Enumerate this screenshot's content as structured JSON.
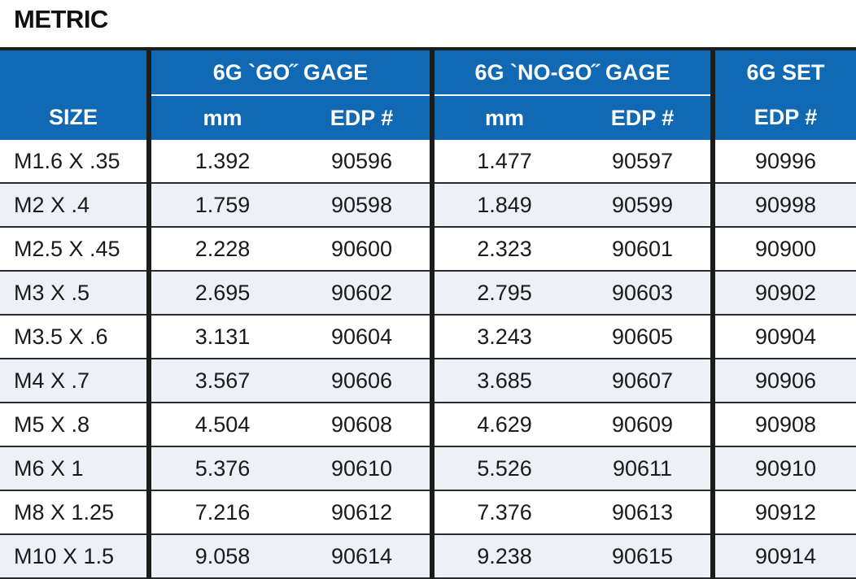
{
  "title": "METRIC",
  "header": {
    "size": "SIZE",
    "go_gage": "6G `GO˝ GAGE",
    "nogo_gage": "6G `NO-GO˝ GAGE",
    "set": "6G SET",
    "mm": "mm",
    "edp": "EDP #"
  },
  "rows": [
    {
      "size": "M1.6 X .35",
      "go_mm": "1.392",
      "go_edp": "90596",
      "nogo_mm": "1.477",
      "nogo_edp": "90597",
      "set_edp": "90996"
    },
    {
      "size": "M2 X .4",
      "go_mm": "1.759",
      "go_edp": "90598",
      "nogo_mm": "1.849",
      "nogo_edp": "90599",
      "set_edp": "90998"
    },
    {
      "size": "M2.5 X .45",
      "go_mm": "2.228",
      "go_edp": "90600",
      "nogo_mm": "2.323",
      "nogo_edp": "90601",
      "set_edp": "90900"
    },
    {
      "size": "M3 X .5",
      "go_mm": "2.695",
      "go_edp": "90602",
      "nogo_mm": "2.795",
      "nogo_edp": "90603",
      "set_edp": "90902"
    },
    {
      "size": "M3.5 X .6",
      "go_mm": "3.131",
      "go_edp": "90604",
      "nogo_mm": "3.243",
      "nogo_edp": "90605",
      "set_edp": "90904"
    },
    {
      "size": "M4 X .7",
      "go_mm": "3.567",
      "go_edp": "90606",
      "nogo_mm": "3.685",
      "nogo_edp": "90607",
      "set_edp": "90906"
    },
    {
      "size": "M5 X .8",
      "go_mm": "4.504",
      "go_edp": "90608",
      "nogo_mm": "4.629",
      "nogo_edp": "90609",
      "set_edp": "90908"
    },
    {
      "size": "M6 X 1",
      "go_mm": "5.376",
      "go_edp": "90610",
      "nogo_mm": "5.526",
      "nogo_edp": "90611",
      "set_edp": "90910"
    },
    {
      "size": "M8 X 1.25",
      "go_mm": "7.216",
      "go_edp": "90612",
      "nogo_mm": "7.376",
      "nogo_edp": "90613",
      "set_edp": "90912"
    },
    {
      "size": "M10 X 1.5",
      "go_mm": "9.058",
      "go_edp": "90614",
      "nogo_mm": "9.238",
      "nogo_edp": "90615",
      "set_edp": "90914"
    }
  ],
  "colors": {
    "header_bg": "#1269b3",
    "stripe": "#eef0f8",
    "rule": "#1c1c1c"
  }
}
